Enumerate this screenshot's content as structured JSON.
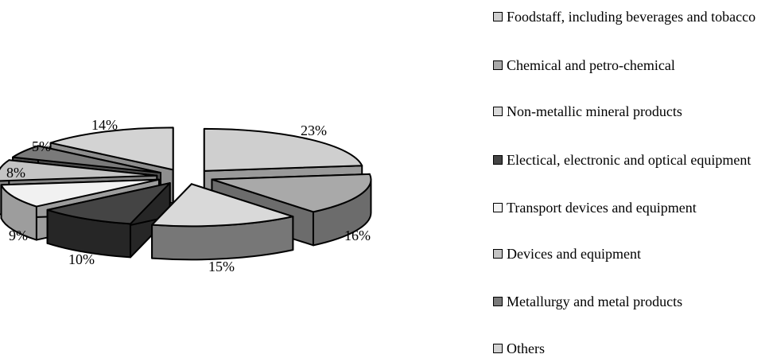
{
  "chart_data": {
    "type": "pie",
    "style": "3d-exploded",
    "title": "",
    "categories": [
      "Foodstaff, including beverages and tobacco",
      "Chemical and petro-chemical",
      "Non-metallic mineral products",
      "Electical, electronic and optical equipment",
      "Transport devices and equipment",
      "Devices and equipment",
      "Metallurgy and metal products",
      "Others"
    ],
    "values": [
      23,
      16,
      15,
      10,
      9,
      8,
      5,
      14
    ],
    "labels": [
      "23%",
      "16%",
      "15%",
      "10%",
      "9%",
      "8%",
      "5%",
      "14%"
    ],
    "colors": [
      "#cfcfcf",
      "#a9a9a9",
      "#d9d9d9",
      "#444444",
      "#f1f1f1",
      "#c4c4c4",
      "#7a7a7a",
      "#d3d3d3"
    ],
    "side_colors": [
      "#9a9a9a",
      "#6c6c6c",
      "#777777",
      "#262626",
      "#9d9d9d",
      "#858585",
      "#4d4d4d",
      "#8e8e8e"
    ],
    "legend_position": "right"
  }
}
